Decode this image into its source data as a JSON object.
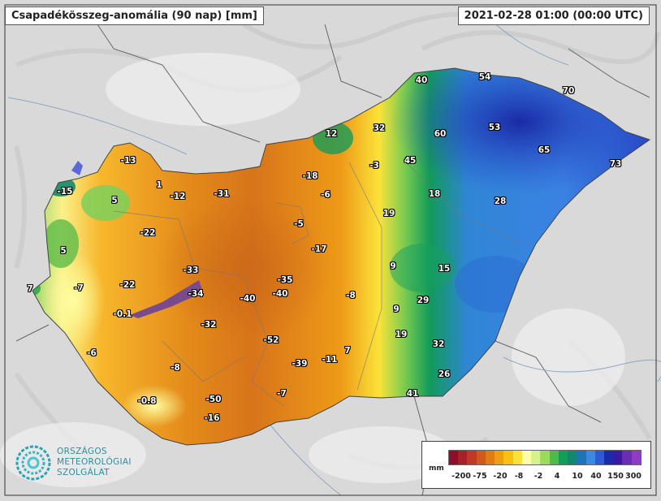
{
  "title": "Csapadékösszeg-anomália (90 nap) [mm]",
  "datetime": "2021-02-28 01:00 (00:00 UTC)",
  "values": [
    {
      "v": "-13"
    },
    {
      "v": "1"
    },
    {
      "v": "-12"
    },
    {
      "v": "-31"
    },
    {
      "v": "5"
    },
    {
      "v": "-15"
    },
    {
      "v": "-22"
    },
    {
      "v": "5"
    },
    {
      "v": "-33"
    },
    {
      "v": "-22"
    },
    {
      "v": "-7"
    },
    {
      "v": "7"
    },
    {
      "v": "-34"
    },
    {
      "v": "-0.1"
    },
    {
      "v": "-40"
    },
    {
      "v": "-40"
    },
    {
      "v": "-35"
    },
    {
      "v": "-32"
    },
    {
      "v": "-52"
    },
    {
      "v": "-6"
    },
    {
      "v": "-8"
    },
    {
      "v": "-39"
    },
    {
      "v": "-11"
    },
    {
      "v": "7"
    },
    {
      "v": "-0.8"
    },
    {
      "v": "-50"
    },
    {
      "v": "-16"
    },
    {
      "v": "-7"
    },
    {
      "v": "-18"
    },
    {
      "v": "-6"
    },
    {
      "v": "-5"
    },
    {
      "v": "-17"
    },
    {
      "v": "-8"
    },
    {
      "v": "12"
    },
    {
      "v": "-3"
    },
    {
      "v": "32"
    },
    {
      "v": "40"
    },
    {
      "v": "54"
    },
    {
      "v": "70"
    },
    {
      "v": "60"
    },
    {
      "v": "53"
    },
    {
      "v": "65"
    },
    {
      "v": "73"
    },
    {
      "v": "45"
    },
    {
      "v": "18"
    },
    {
      "v": "28"
    },
    {
      "v": "19"
    },
    {
      "v": "9"
    },
    {
      "v": "15"
    },
    {
      "v": "9"
    },
    {
      "v": "29"
    },
    {
      "v": "19"
    },
    {
      "v": "32"
    },
    {
      "v": "26"
    },
    {
      "v": "41"
    }
  ],
  "legend": {
    "unit": "mm",
    "colors": [
      "#8e0f2b",
      "#a8202a",
      "#c03a22",
      "#d05a1c",
      "#e07c14",
      "#ee9e0e",
      "#f8c010",
      "#fbe23a",
      "#fefea8",
      "#d6f28c",
      "#98dc5e",
      "#4cbc48",
      "#149c5a",
      "#12886e",
      "#1f74b4",
      "#3a8ae2",
      "#2e5ad6",
      "#1a2aaa",
      "#3a1aa0",
      "#6a2eb4",
      "#8e3cc4"
    ],
    "ticks": [
      "-200",
      "-75",
      "-20",
      "-8",
      "-2",
      "4",
      "10",
      "40",
      "150",
      "300"
    ]
  },
  "logo": {
    "line1": "ORSZÁGOS",
    "line2": "METEOROLÓGIAI",
    "line3": "SZOLGÁLAT"
  }
}
